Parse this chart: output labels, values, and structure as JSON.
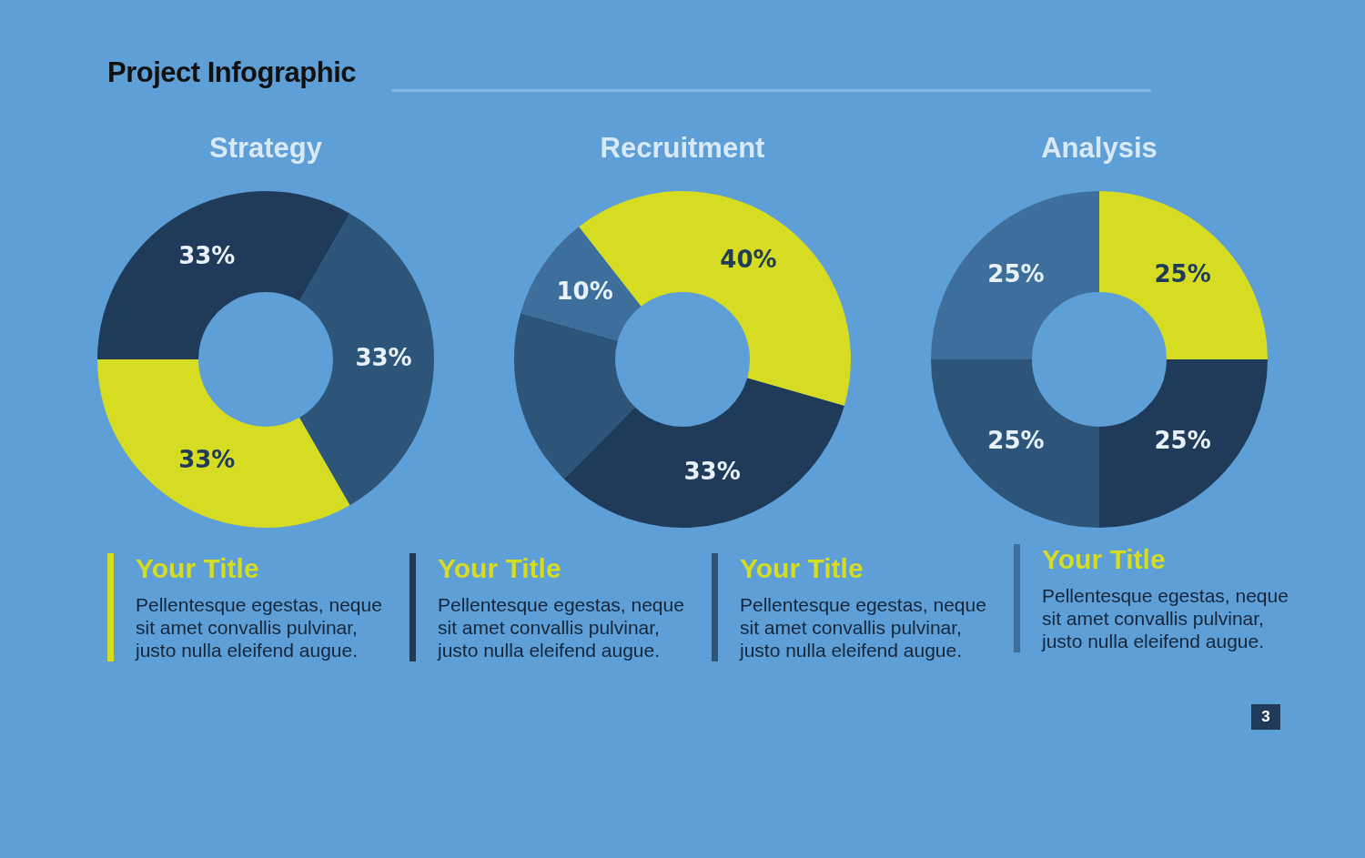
{
  "chart_data": [
    {
      "type": "other",
      "title": "Project Infographic",
      "annotations": [
        "Your Title",
        "Pellentesque egestas, neque sit amet convallis pulvinar, justo nulla eleifend augue.",
        "Your Title",
        "Pellentesque egestas, neque sit amet convallis pulvinar, justo nulla eleifend augue.",
        "Your Title",
        "Pellentesque egestas, neque sit amet convallis pulvinar, justo nulla eleifend augue.",
        "Your Title",
        "Pellentesque egestas, neque sit amet convallis pulvinar, justo nulla eleifend augue.",
        "3"
      ]
    },
    {
      "type": "donut",
      "title": "Strategy",
      "categories": [
        null,
        null,
        null
      ],
      "values": [
        33,
        33,
        33
      ],
      "colors": [
        "#1f3b59",
        "#2c5579",
        "#d5dc22"
      ],
      "value_labels": [
        "33%",
        "33%",
        "33%"
      ]
    },
    {
      "type": "donut",
      "title": "Recruitment",
      "categories": [
        null,
        null,
        null,
        null
      ],
      "values": [
        40,
        33,
        17,
        10
      ],
      "colors": [
        "#d5dc22",
        "#1f3b59",
        "#2c5579",
        "#3e6e9c"
      ],
      "value_labels": [
        "40%",
        "33%",
        null,
        "10%"
      ]
    },
    {
      "type": "donut",
      "title": "Analysis",
      "categories": [
        null,
        null,
        null,
        null
      ],
      "values": [
        25,
        25,
        25,
        25
      ],
      "colors": [
        "#d5dc22",
        "#1f3b59",
        "#2c5579",
        "#3e6e9c"
      ],
      "value_labels": [
        "25%",
        "25%",
        "25%",
        "25%"
      ]
    }
  ]
}
